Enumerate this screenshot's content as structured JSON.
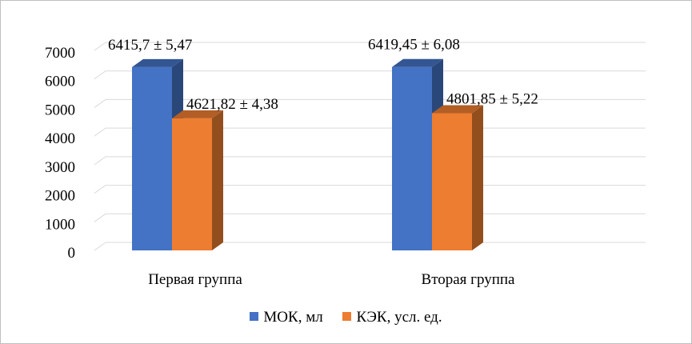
{
  "chart_data": {
    "type": "bar",
    "categories": [
      "Первая группа",
      "Вторая группа"
    ],
    "series": [
      {
        "name": "МОК, мл",
        "color": "#4472C4",
        "values": [
          6415.7,
          6419.45
        ],
        "labels": [
          "6415,7 ± 5,47",
          "6419,45 ± 6,08"
        ]
      },
      {
        "name": "КЭК, усл. ед.",
        "color": "#ED7D31",
        "values": [
          4621.82,
          4801.85
        ],
        "labels": [
          "4621,82 ± 4,38",
          "4801,85 ± 5,22"
        ]
      }
    ],
    "y_ticks": [
      "0",
      "1000",
      "2000",
      "3000",
      "4000",
      "5000",
      "6000",
      "7000"
    ],
    "ylim": [
      0,
      7000
    ],
    "grid": true,
    "legend_position": "bottom",
    "style": "3d-column"
  }
}
